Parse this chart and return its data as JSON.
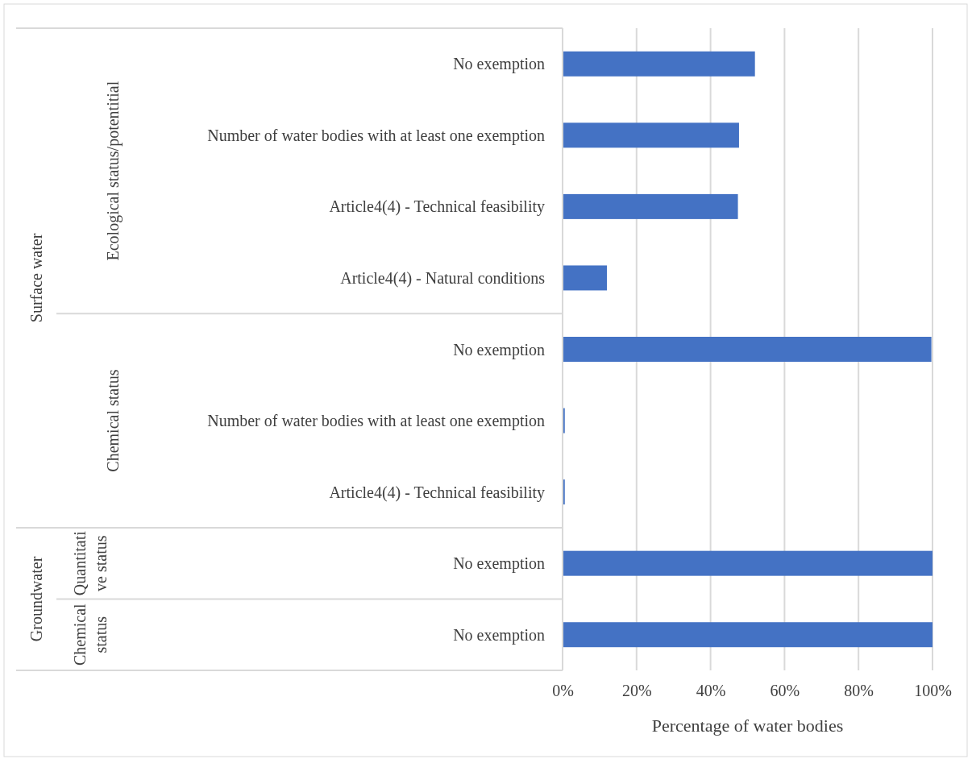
{
  "chart_data": {
    "type": "bar",
    "orientation": "horizontal",
    "categories": [
      "No exemption",
      "Number of water bodies with at least one exemption",
      "Article4(4) - Technical feasibility",
      "Article4(4) - Natural conditions",
      "No exemption",
      "Number of water bodies with at least one exemption",
      "Article4(4) - Technical feasibility",
      "No exemption",
      "No exemption"
    ],
    "values": [
      52,
      47.7,
      47.4,
      12,
      99.7,
      0.6,
      0.6,
      100,
      100
    ],
    "color": "#4472c4",
    "xlim": [
      0,
      100
    ],
    "xticks": [
      {
        "value": 0,
        "label": "0%"
      },
      {
        "value": 20,
        "label": "20%"
      },
      {
        "value": 40,
        "label": "40%"
      },
      {
        "value": 60,
        "label": "60%"
      },
      {
        "value": 80,
        "label": "80%"
      },
      {
        "value": 100,
        "label": "100%"
      }
    ],
    "xlabel": "Percentage of water bodies",
    "grid": "x",
    "annotations": [
      "Surface water",
      "Groundwater",
      "Ecological status/potentitial",
      "Chemical status",
      "Quantitative status",
      "Chemical status"
    ]
  }
}
